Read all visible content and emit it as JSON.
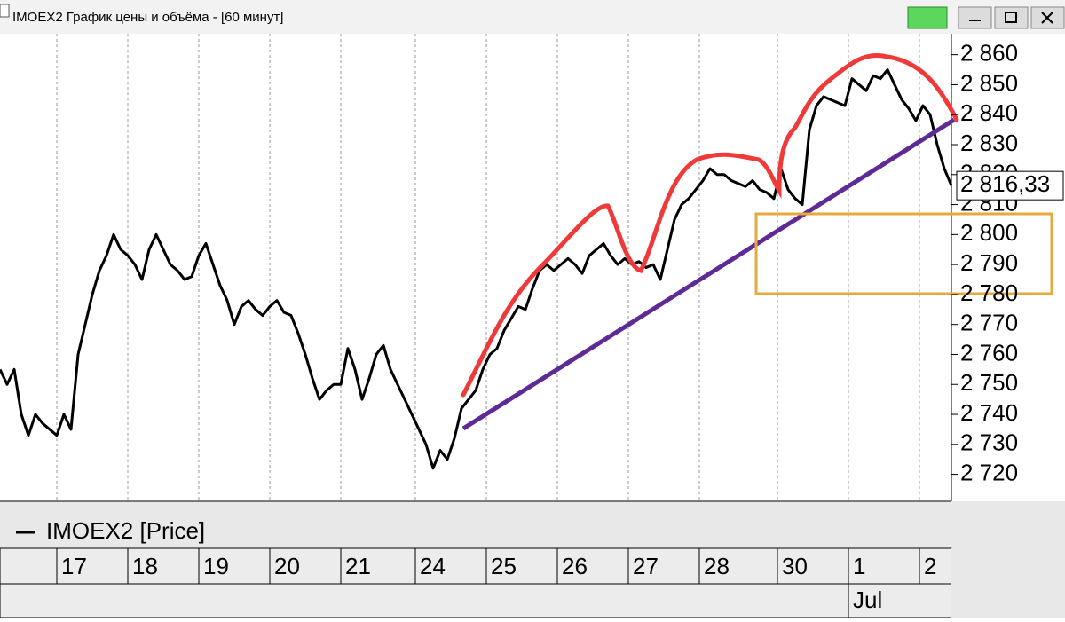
{
  "window": {
    "title": "IMOEX2 График цены и объёма - [60 минут]"
  },
  "chart_data": {
    "type": "line",
    "series": [
      {
        "name": "IMOEX2 [Price]",
        "color": "#000000",
        "values": [
          2755,
          2750,
          2755,
          2740,
          2733,
          2740,
          2737,
          2735,
          2733,
          2740,
          2735,
          2760,
          2770,
          2780,
          2788,
          2793,
          2800,
          2795,
          2793,
          2790,
          2785,
          2795,
          2800,
          2795,
          2790,
          2788,
          2785,
          2786,
          2793,
          2797,
          2790,
          2783,
          2778,
          2770,
          2776,
          2778,
          2775,
          2773,
          2776,
          2778,
          2774,
          2773,
          2767,
          2760,
          2752,
          2745,
          2748,
          2750,
          2750,
          2762,
          2755,
          2745,
          2752,
          2760,
          2763,
          2755,
          2750,
          2745,
          2740,
          2735,
          2730,
          2722,
          2728,
          2725,
          2732,
          2742,
          2745,
          2748,
          2755,
          2760,
          2762,
          2768,
          2772,
          2776,
          2775,
          2782,
          2788,
          2790,
          2788,
          2790,
          2792,
          2790,
          2787,
          2793,
          2795,
          2797,
          2793,
          2790,
          2792,
          2790,
          2791,
          2789,
          2790,
          2785,
          2795,
          2805,
          2810,
          2812,
          2815,
          2818,
          2822,
          2820,
          2820,
          2818,
          2817,
          2816,
          2818,
          2815,
          2814,
          2812,
          2822,
          2815,
          2812,
          2810,
          2835,
          2843,
          2846,
          2845,
          2844,
          2843,
          2852,
          2850,
          2848,
          2853,
          2852,
          2855,
          2850,
          2845,
          2842,
          2838,
          2843,
          2840,
          2830,
          2822,
          2816.33
        ]
      }
    ],
    "last_price": {
      "value": 2816.33,
      "label": "2 816,33"
    },
    "xlim": [
      0,
      134
    ],
    "xticks": [
      {
        "value": 8,
        "label": "17"
      },
      {
        "value": 18,
        "label": "18"
      },
      {
        "value": 28,
        "label": "19"
      },
      {
        "value": 38,
        "label": "20"
      },
      {
        "value": 48,
        "label": "21"
      },
      {
        "value": 58.5,
        "label": "24"
      },
      {
        "value": 68.5,
        "label": "25"
      },
      {
        "value": 78.5,
        "label": "26"
      },
      {
        "value": 88.5,
        "label": "27"
      },
      {
        "value": 98.5,
        "label": "28"
      },
      {
        "value": 109.5,
        "label": "30"
      },
      {
        "value": 119.5,
        "label": "1"
      },
      {
        "value": 129.5,
        "label": "2"
      }
    ],
    "month_ticks": [
      {
        "value": 119.5,
        "label": "Jul"
      }
    ],
    "ylim": [
      2711,
      2867
    ],
    "yticks": [
      {
        "value": 2720,
        "label": "2 720"
      },
      {
        "value": 2730,
        "label": "2 730"
      },
      {
        "value": 2740,
        "label": "2 740"
      },
      {
        "value": 2750,
        "label": "2 750"
      },
      {
        "value": 2760,
        "label": "2 760"
      },
      {
        "value": 2770,
        "label": "2 770"
      },
      {
        "value": 2780,
        "label": "2 780"
      },
      {
        "value": 2790,
        "label": "2 790"
      },
      {
        "value": 2800,
        "label": "2 800"
      },
      {
        "value": 2810,
        "label": "2 810"
      },
      {
        "value": 2820,
        "label": "2 820"
      },
      {
        "value": 2830,
        "label": "2 830"
      },
      {
        "value": 2840,
        "label": "2 840"
      },
      {
        "value": 2850,
        "label": "2 850"
      },
      {
        "value": 2860,
        "label": "2 860"
      }
    ],
    "grid": true
  }
}
